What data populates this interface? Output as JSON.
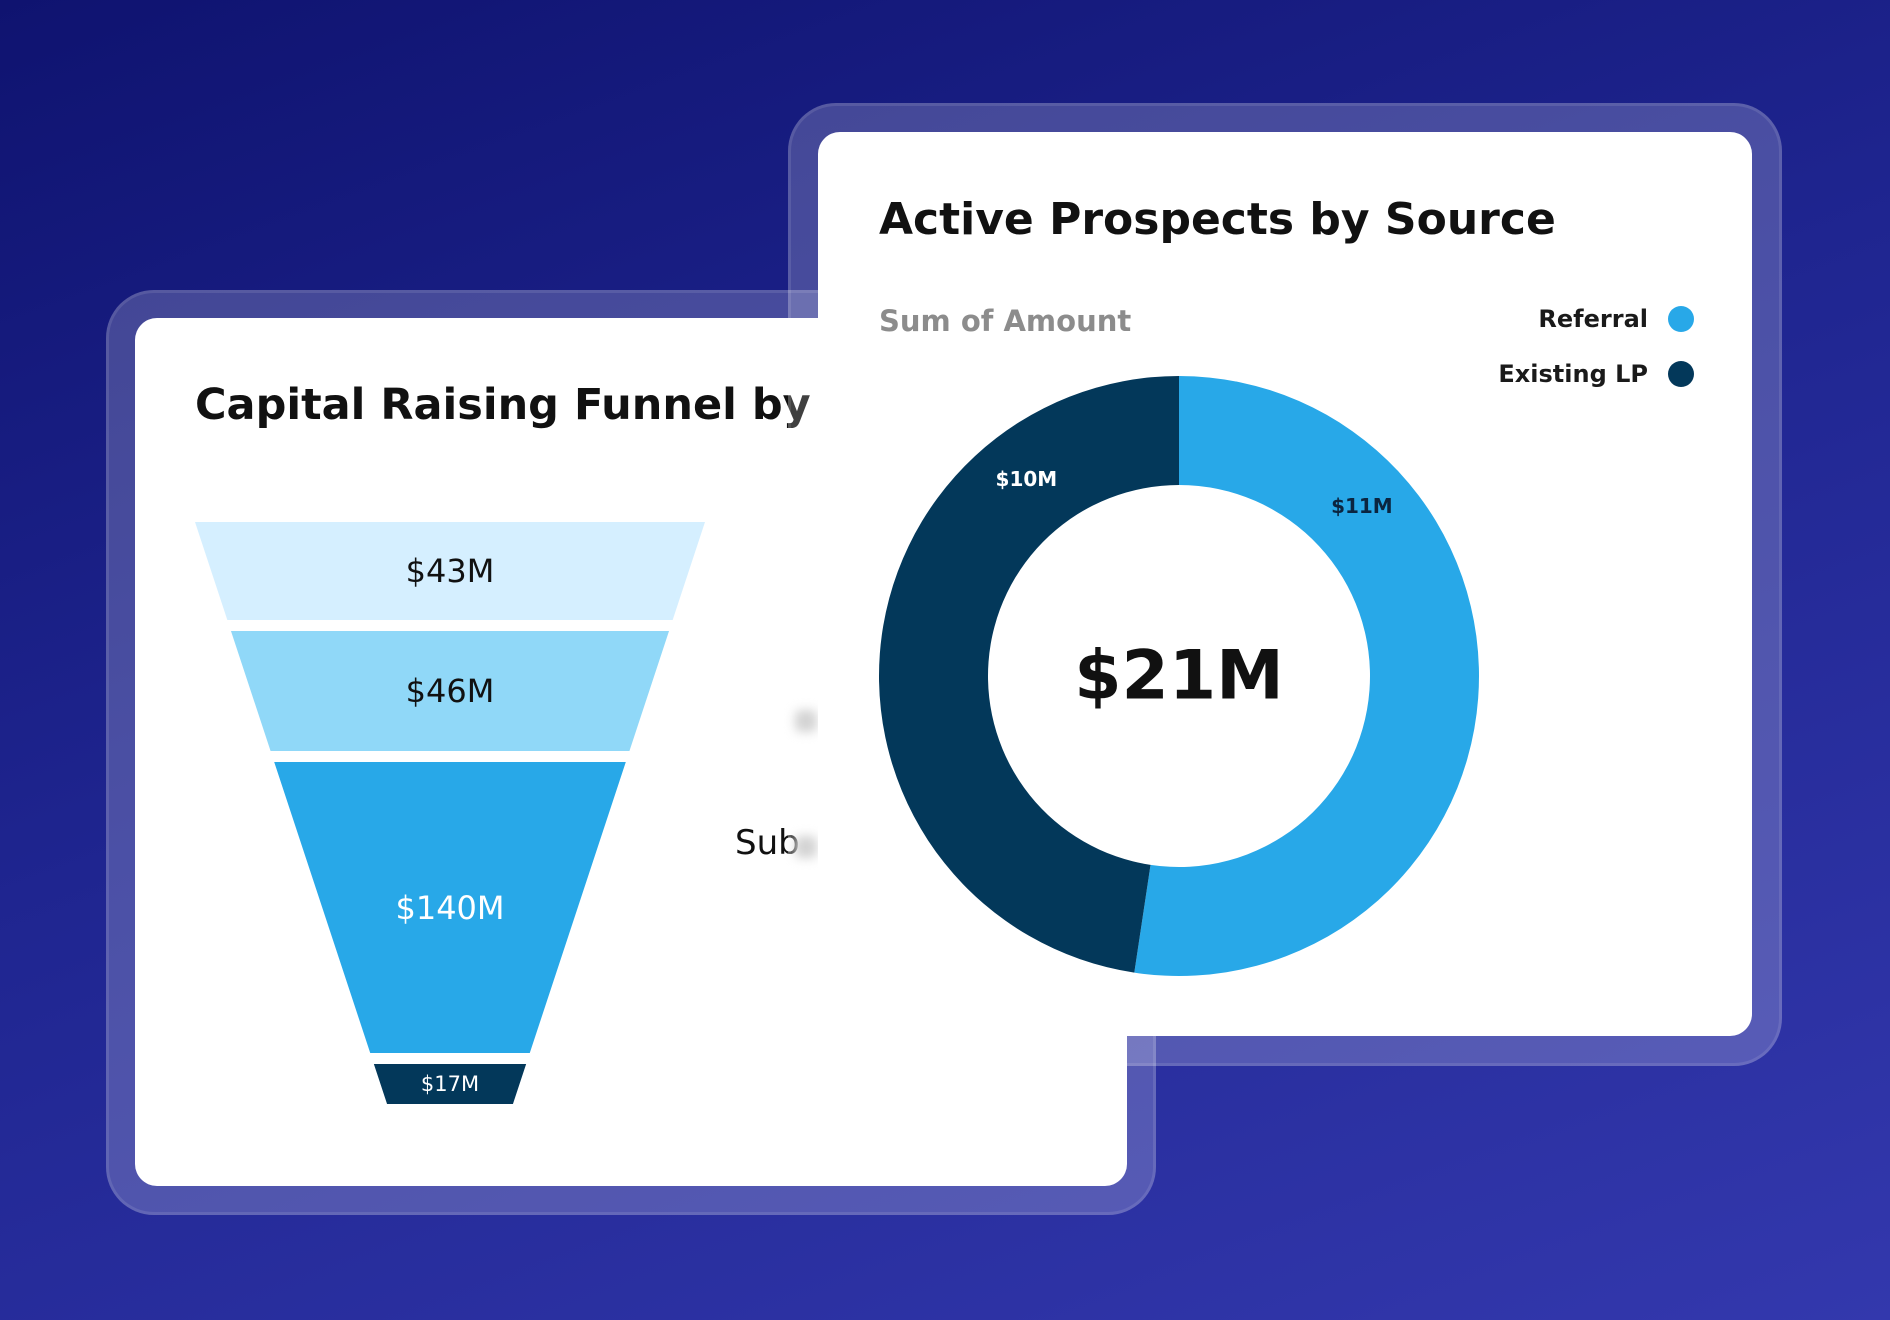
{
  "funnel_card": {
    "title": "Capital Raising Funnel by S",
    "partial_label": "Sub"
  },
  "prospects_card": {
    "title": "Active Prospects by Source",
    "subtitle": "Sum of Amount",
    "center_total": "$21M"
  },
  "colors": {
    "background": "#1a1f86",
    "referral": "#28a8e8",
    "existing_lp": "#03385a",
    "funnel_stage_1": "#d5efff",
    "funnel_stage_2": "#90d8f8",
    "funnel_stage_3": "#28a8e8",
    "funnel_stage_4": "#03385a"
  },
  "chart_data": [
    {
      "type": "funnel",
      "title": "Capital Raising Funnel by S",
      "values": [
        43,
        46,
        140,
        17
      ],
      "labels": [
        "$43M",
        "$46M",
        "$140M",
        "$17M"
      ],
      "unit": "$M"
    },
    {
      "type": "pie",
      "variant": "donut",
      "title": "Active Prospects by Source",
      "subtitle": "Sum of Amount",
      "categories": [
        "Referral",
        "Existing LP"
      ],
      "values": [
        11,
        10
      ],
      "labels": [
        "$11M",
        "$10M"
      ],
      "total_label": "$21M",
      "legend": "top-right"
    }
  ]
}
